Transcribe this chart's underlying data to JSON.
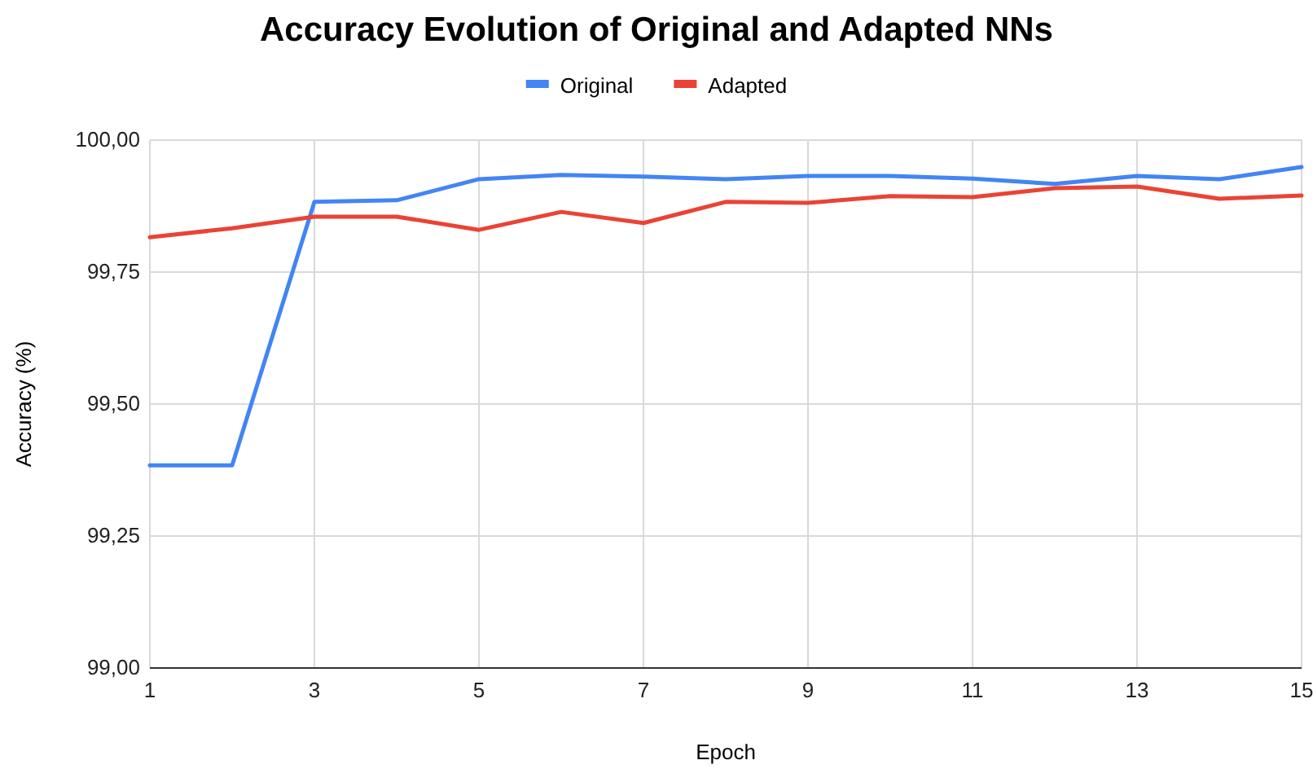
{
  "chart_data": {
    "type": "line",
    "title": "Accuracy Evolution of Original and Adapted NNs",
    "xlabel": "Epoch",
    "ylabel": "Accuracy (%)",
    "x": [
      1,
      2,
      3,
      4,
      5,
      6,
      7,
      8,
      9,
      10,
      11,
      12,
      13,
      14,
      15
    ],
    "series": [
      {
        "name": "Original",
        "color": "#4285f4",
        "values": [
          99.384,
          99.384,
          99.883,
          99.886,
          99.926,
          99.934,
          99.931,
          99.926,
          99.932,
          99.932,
          99.927,
          99.917,
          99.932,
          99.926,
          99.949
        ]
      },
      {
        "name": "Adapted",
        "color": "#ea4335",
        "values": [
          99.816,
          99.833,
          99.855,
          99.855,
          99.83,
          99.864,
          99.843,
          99.883,
          99.881,
          99.894,
          99.892,
          99.909,
          99.912,
          99.889,
          99.895
        ]
      }
    ],
    "xlim": [
      1,
      15
    ],
    "xticks": [
      1,
      3,
      5,
      7,
      9,
      11,
      13,
      15
    ],
    "ylim": [
      99,
      100
    ],
    "yticks": [
      {
        "value": 99,
        "label": "99,00"
      },
      {
        "value": 99.25,
        "label": "99,25"
      },
      {
        "value": 99.5,
        "label": "99,50"
      },
      {
        "value": 99.75,
        "label": "99,75"
      },
      {
        "value": 100,
        "label": "100,00"
      }
    ],
    "grid": true,
    "legend": "top",
    "line_style": "solid",
    "marker": "none"
  }
}
